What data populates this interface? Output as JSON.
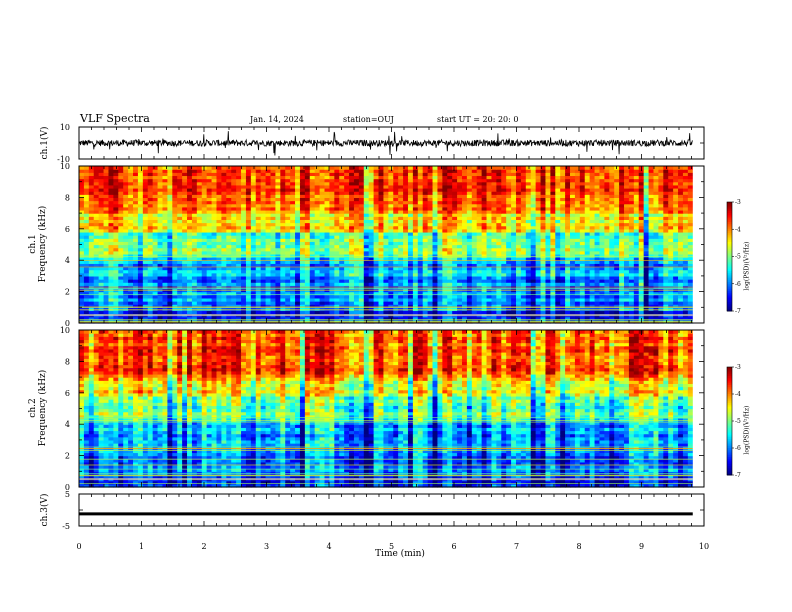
{
  "header": {
    "title": "VLF Spectra",
    "date": "Jan. 14, 2024",
    "station": "station=OUJ",
    "start": "start UT =  20: 20: 0"
  },
  "chart_data": [
    {
      "type": "line",
      "name": "ch1-waveform",
      "ylabel": "ch.1(V)",
      "ylim": [
        -10,
        10
      ],
      "yticks": [
        "10",
        "-10"
      ],
      "xlim": [
        0,
        10
      ]
    },
    {
      "type": "heatmap",
      "name": "ch1-spectrogram",
      "ylabel_line1": "ch.1",
      "ylabel_line2": "Frequency (kHz)",
      "ylim": [
        0,
        10
      ],
      "yticks": [
        "0",
        "2",
        "4",
        "6",
        "8",
        "10"
      ],
      "xlim": [
        0,
        10
      ],
      "data_end_min": 9.82,
      "colorbar": {
        "label": "log(PSD)(V²/Hz)",
        "range": [
          -7,
          -3
        ],
        "ticks": [
          "-3",
          "-4",
          "-5",
          "-6",
          "-7"
        ]
      }
    },
    {
      "type": "heatmap",
      "name": "ch2-spectrogram",
      "ylabel_line1": "ch.2",
      "ylabel_line2": "Frequency (kHz)",
      "ylim": [
        0,
        10
      ],
      "yticks": [
        "0",
        "2",
        "4",
        "6",
        "8",
        "10"
      ],
      "xlim": [
        0,
        10
      ],
      "data_end_min": 9.82,
      "colorbar": {
        "label": "log(PSD)(V²/Hz)",
        "range": [
          -7,
          -3
        ],
        "ticks": [
          "-3",
          "-4",
          "-5",
          "-6",
          "-7"
        ]
      }
    },
    {
      "type": "line",
      "name": "ch3-waveform",
      "ylabel": "ch.3(V)",
      "ylim": [
        -5,
        5
      ],
      "yticks": [
        "5",
        "-5"
      ],
      "xlim": [
        0,
        10
      ],
      "level": -1.2
    }
  ],
  "xaxis": {
    "label": "Time (min)",
    "ticks": [
      "0",
      "1",
      "2",
      "3",
      "4",
      "5",
      "6",
      "7",
      "8",
      "9",
      "10"
    ]
  }
}
